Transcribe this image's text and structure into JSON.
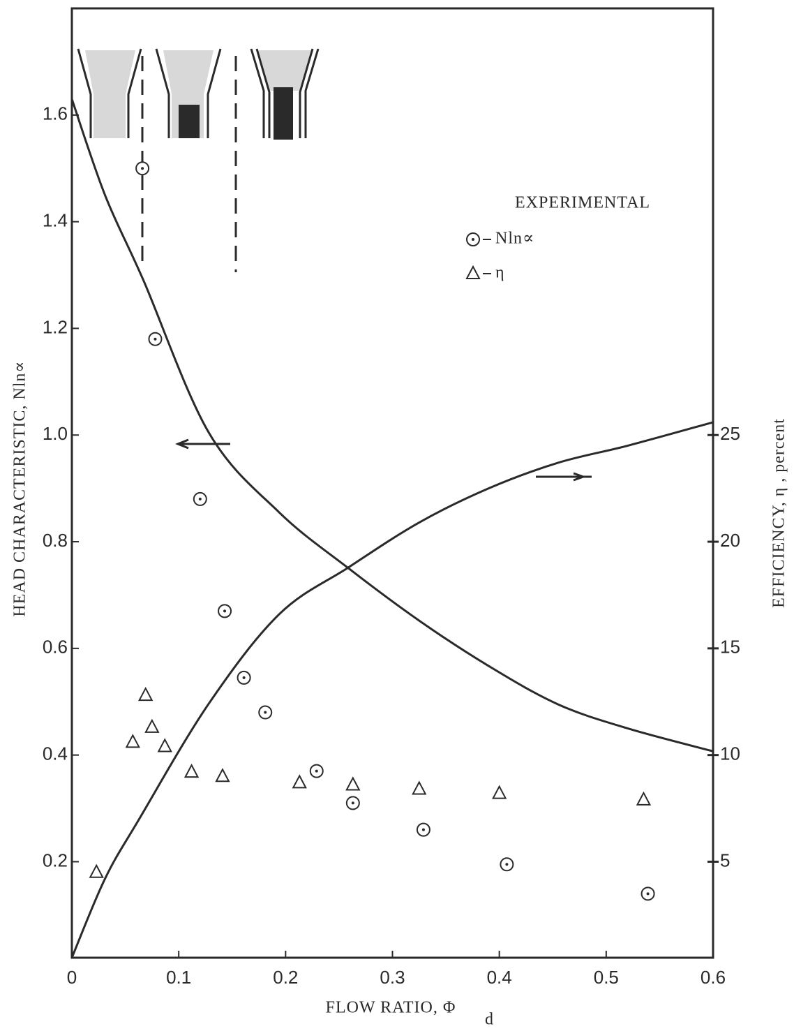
{
  "chart_data": {
    "type": "scatter",
    "xlabel": "FLOW RATIO, Φ",
    "xlabel_subscript": "d",
    "ylabel": "HEAD CHARACTERISTIC, Nln∝",
    "y2label": "EFFICIENCY, η , percent",
    "legend_title": "EXPERIMENTAL",
    "xlim": [
      0,
      0.6
    ],
    "xticks": [
      0,
      0.1,
      0.2,
      0.3,
      0.4,
      0.5,
      0.6
    ],
    "ylim": [
      0.02,
      1.8
    ],
    "yticks": [
      0.2,
      0.4,
      0.6,
      0.8,
      {
        "value": 1,
        "label": "1.0"
      },
      1.2,
      1.4,
      1.6
    ],
    "y2lim": [
      0.5,
      45
    ],
    "y2ticks": [
      5,
      10,
      15,
      20,
      25
    ],
    "series": [
      {
        "kind": "line",
        "color": "#2a2a2a",
        "x": [
          0,
          0.031,
          0.067,
          0.128,
          0.194,
          0.259,
          0.325,
          0.39,
          0.455,
          0.52,
          0.6
        ],
        "values": [
          1.63,
          1.45,
          1.29,
          1.005,
          0.855,
          0.75,
          0.652,
          0.567,
          0.495,
          0.45,
          0.407
        ]
      },
      {
        "kind": "line",
        "axis": "y2",
        "color": "#2a2a2a",
        "x": [
          0,
          0.031,
          0.063,
          0.128,
          0.194,
          0.259,
          0.325,
          0.39,
          0.455,
          0.52,
          0.6
        ],
        "values": [
          0.5,
          4.2,
          7.0,
          12.4,
          16.6,
          18.8,
          20.9,
          22.5,
          23.7,
          24.5,
          25.6
        ]
      },
      {
        "name": "Nln∝",
        "marker": "circle",
        "color": "#2a2a2a",
        "x": [
          0.066,
          0.078,
          0.12,
          0.143,
          0.161,
          0.181,
          0.229,
          0.263,
          0.329,
          0.407,
          0.539
        ],
        "values": [
          1.5,
          1.18,
          0.88,
          0.67,
          0.545,
          0.48,
          0.37,
          0.31,
          0.26,
          0.195,
          0.14
        ]
      },
      {
        "name": "η",
        "marker": "triangle",
        "axis": "y2",
        "color": "#2a2a2a",
        "x": [
          0.023,
          0.057,
          0.069,
          0.075,
          0.087,
          0.112,
          0.141,
          0.213,
          0.263,
          0.325,
          0.4,
          0.535
        ],
        "values": [
          4.5,
          10.6,
          12.8,
          11.3,
          10.4,
          9.2,
          9.0,
          8.7,
          8.6,
          8.4,
          8.2,
          7.9
        ]
      }
    ]
  }
}
